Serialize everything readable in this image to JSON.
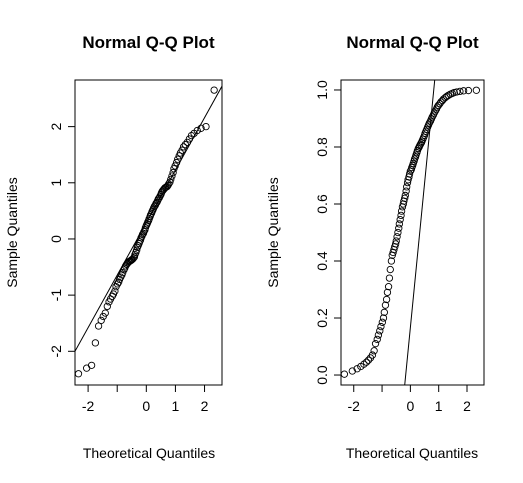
{
  "chart_data": [
    {
      "type": "scatter",
      "title": "Normal Q-Q Plot",
      "xlabel": "Theoretical Quantiles",
      "ylabel": "Sample Quantiles",
      "xlim": [
        -2.45,
        2.6
      ],
      "ylim": [
        -2.6,
        2.83
      ],
      "x_ticks": [
        -2,
        -1,
        0,
        1,
        2
      ],
      "x_tick_labels": [
        "-2",
        "",
        "0",
        "1",
        "2"
      ],
      "y_ticks": [
        -2,
        -1,
        0,
        1,
        2
      ],
      "y_tick_labels": [
        "-2",
        "-1",
        "0",
        "1",
        "2"
      ],
      "reference_line": {
        "x": [
          -2.45,
          2.6
        ],
        "y": [
          -2.0,
          2.72
        ]
      },
      "series": [
        {
          "x": [
            -2.33,
            -2.05,
            -1.88,
            -1.75,
            -1.64,
            -1.55,
            -1.48,
            -1.41,
            -1.34,
            -1.28,
            -1.23,
            -1.17,
            -1.13,
            -1.08,
            -1.04,
            -0.99,
            -0.95,
            -0.92,
            -0.88,
            -0.84,
            -0.81,
            -0.77,
            -0.74,
            -0.71,
            -0.67,
            -0.64,
            -0.61,
            -0.58,
            -0.55,
            -0.52,
            -0.5,
            -0.47,
            -0.44,
            -0.41,
            -0.39,
            -0.36,
            -0.33,
            -0.31,
            -0.28,
            -0.25,
            -0.23,
            -0.2,
            -0.18,
            -0.15,
            -0.13,
            -0.1,
            -0.08,
            -0.05,
            -0.03,
            0.0,
            0.03,
            0.05,
            0.08,
            0.1,
            0.13,
            0.15,
            0.18,
            0.2,
            0.23,
            0.25,
            0.28,
            0.31,
            0.33,
            0.36,
            0.39,
            0.41,
            0.44,
            0.47,
            0.5,
            0.52,
            0.55,
            0.58,
            0.61,
            0.64,
            0.67,
            0.71,
            0.74,
            0.77,
            0.81,
            0.84,
            0.88,
            0.92,
            0.95,
            0.99,
            1.04,
            1.08,
            1.13,
            1.17,
            1.23,
            1.28,
            1.34,
            1.41,
            1.48,
            1.55,
            1.64,
            1.75,
            1.88,
            2.05,
            2.33
          ],
          "y": [
            -2.4,
            -2.3,
            -2.25,
            -1.85,
            -1.55,
            -1.45,
            -1.38,
            -1.32,
            -1.2,
            -1.12,
            -1.07,
            -1.02,
            -0.98,
            -0.93,
            -0.85,
            -0.8,
            -0.77,
            -0.72,
            -0.68,
            -0.64,
            -0.6,
            -0.55,
            -0.52,
            -0.48,
            -0.45,
            -0.43,
            -0.41,
            -0.4,
            -0.39,
            -0.38,
            -0.37,
            -0.36,
            -0.34,
            -0.32,
            -0.28,
            -0.24,
            -0.2,
            -0.15,
            -0.12,
            -0.08,
            -0.05,
            -0.02,
            0.02,
            0.05,
            0.08,
            0.1,
            0.13,
            0.16,
            0.2,
            0.24,
            0.27,
            0.3,
            0.33,
            0.36,
            0.4,
            0.43,
            0.46,
            0.49,
            0.52,
            0.55,
            0.58,
            0.6,
            0.63,
            0.65,
            0.68,
            0.71,
            0.73,
            0.76,
            0.79,
            0.82,
            0.85,
            0.87,
            0.89,
            0.91,
            0.92,
            0.93,
            0.95,
            0.98,
            1.01,
            1.06,
            1.12,
            1.18,
            1.25,
            1.3,
            1.36,
            1.42,
            1.48,
            1.53,
            1.58,
            1.64,
            1.68,
            1.72,
            1.78,
            1.84,
            1.88,
            1.93,
            1.97,
            2.0,
            2.65
          ]
        }
      ]
    },
    {
      "type": "scatter",
      "title": "Normal Q-Q Plot",
      "xlabel": "Theoretical Quantiles",
      "ylabel": "Sample Quantiles",
      "xlim": [
        -2.45,
        2.6
      ],
      "ylim": [
        -0.035,
        1.035
      ],
      "x_ticks": [
        -2,
        -1,
        0,
        1,
        2
      ],
      "x_tick_labels": [
        "-2",
        "",
        "0",
        "1",
        "2"
      ],
      "y_ticks": [
        0.0,
        0.2,
        0.4,
        0.6,
        0.8,
        1.0
      ],
      "y_tick_labels": [
        "0.0",
        "0.2",
        "0.4",
        "0.6",
        "0.8",
        "1.0"
      ],
      "reference_line": {
        "x": [
          -0.2,
          0.86
        ],
        "y": [
          -0.035,
          1.035
        ]
      },
      "series": [
        {
          "x": [
            -2.33,
            -2.05,
            -1.88,
            -1.75,
            -1.64,
            -1.55,
            -1.48,
            -1.41,
            -1.34,
            -1.28,
            -1.23,
            -1.17,
            -1.13,
            -1.08,
            -1.04,
            -0.99,
            -0.95,
            -0.92,
            -0.88,
            -0.84,
            -0.81,
            -0.77,
            -0.74,
            -0.71,
            -0.67,
            -0.64,
            -0.61,
            -0.58,
            -0.55,
            -0.52,
            -0.5,
            -0.47,
            -0.44,
            -0.41,
            -0.39,
            -0.36,
            -0.33,
            -0.31,
            -0.28,
            -0.25,
            -0.23,
            -0.2,
            -0.18,
            -0.15,
            -0.13,
            -0.1,
            -0.08,
            -0.05,
            -0.03,
            0.0,
            0.03,
            0.05,
            0.08,
            0.1,
            0.13,
            0.15,
            0.18,
            0.2,
            0.23,
            0.25,
            0.28,
            0.31,
            0.33,
            0.36,
            0.39,
            0.41,
            0.44,
            0.47,
            0.5,
            0.52,
            0.55,
            0.58,
            0.61,
            0.64,
            0.67,
            0.71,
            0.74,
            0.77,
            0.81,
            0.84,
            0.88,
            0.92,
            0.95,
            0.99,
            1.04,
            1.08,
            1.13,
            1.17,
            1.23,
            1.28,
            1.34,
            1.41,
            1.48,
            1.55,
            1.64,
            1.75,
            1.88,
            2.05,
            2.33
          ],
          "y": [
            0.003,
            0.014,
            0.022,
            0.03,
            0.038,
            0.045,
            0.052,
            0.06,
            0.07,
            0.085,
            0.11,
            0.125,
            0.14,
            0.155,
            0.17,
            0.185,
            0.2,
            0.22,
            0.245,
            0.265,
            0.29,
            0.31,
            0.34,
            0.37,
            0.4,
            0.42,
            0.43,
            0.44,
            0.45,
            0.46,
            0.47,
            0.485,
            0.5,
            0.515,
            0.53,
            0.545,
            0.56,
            0.575,
            0.59,
            0.6,
            0.61,
            0.62,
            0.63,
            0.645,
            0.66,
            0.675,
            0.685,
            0.695,
            0.705,
            0.715,
            0.72,
            0.728,
            0.735,
            0.742,
            0.75,
            0.758,
            0.765,
            0.772,
            0.78,
            0.787,
            0.795,
            0.8,
            0.805,
            0.81,
            0.815,
            0.82,
            0.827,
            0.834,
            0.841,
            0.848,
            0.855,
            0.862,
            0.87,
            0.877,
            0.884,
            0.891,
            0.898,
            0.905,
            0.912,
            0.919,
            0.926,
            0.933,
            0.94,
            0.946,
            0.952,
            0.958,
            0.963,
            0.968,
            0.973,
            0.977,
            0.981,
            0.985,
            0.988,
            0.991,
            0.993,
            0.995,
            0.997,
            0.998,
            0.999
          ]
        }
      ]
    }
  ]
}
